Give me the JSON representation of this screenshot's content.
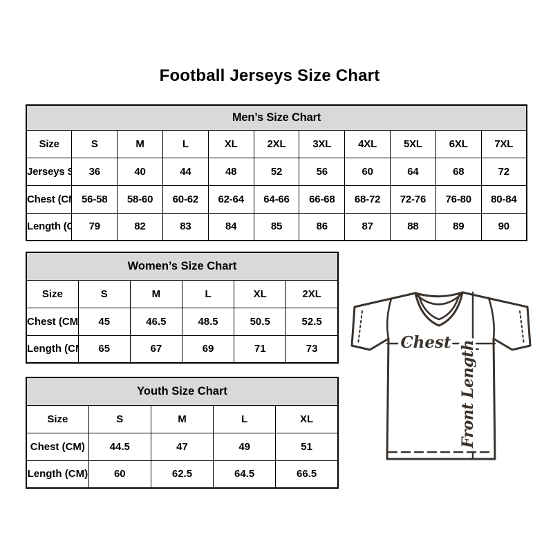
{
  "page": {
    "title": "Football Jerseys Size Chart"
  },
  "tables": {
    "mens": {
      "title": "Men’s Size Chart",
      "rows": [
        [
          "Size",
          "S",
          "M",
          "L",
          "XL",
          "2XL",
          "3XL",
          "4XL",
          "5XL",
          "6XL",
          "7XL"
        ],
        [
          "Jerseys Size",
          "36",
          "40",
          "44",
          "48",
          "52",
          "56",
          "60",
          "64",
          "68",
          "72"
        ],
        [
          "Chest (CM)",
          "56-58",
          "58-60",
          "60-62",
          "62-64",
          "64-66",
          "66-68",
          "68-72",
          "72-76",
          "76-80",
          "80-84"
        ],
        [
          "Length (CM)",
          "79",
          "82",
          "83",
          "84",
          "85",
          "86",
          "87",
          "88",
          "89",
          "90"
        ]
      ]
    },
    "womens": {
      "title": "Women’s Size Chart",
      "rows": [
        [
          "Size",
          "S",
          "M",
          "L",
          "XL",
          "2XL"
        ],
        [
          "Chest (CM)",
          "45",
          "46.5",
          "48.5",
          "50.5",
          "52.5"
        ],
        [
          "Length (CM)",
          "65",
          "67",
          "69",
          "71",
          "73"
        ]
      ]
    },
    "youth": {
      "title": "Youth Size Chart",
      "rows": [
        [
          "Size",
          "S",
          "M",
          "L",
          "XL"
        ],
        [
          "Chest (CM)",
          "44.5",
          "47",
          "49",
          "51"
        ],
        [
          "Length (CM)",
          "60",
          "62.5",
          "64.5",
          "66.5"
        ]
      ]
    }
  },
  "diagram": {
    "chest_label": "Chest",
    "front_length_label": "Front Length",
    "line_color": "#3a322c"
  },
  "colors": {
    "table_header_bg": "#d9d9d9",
    "table_border": "#000000",
    "text": "#000000",
    "background": "#ffffff"
  }
}
